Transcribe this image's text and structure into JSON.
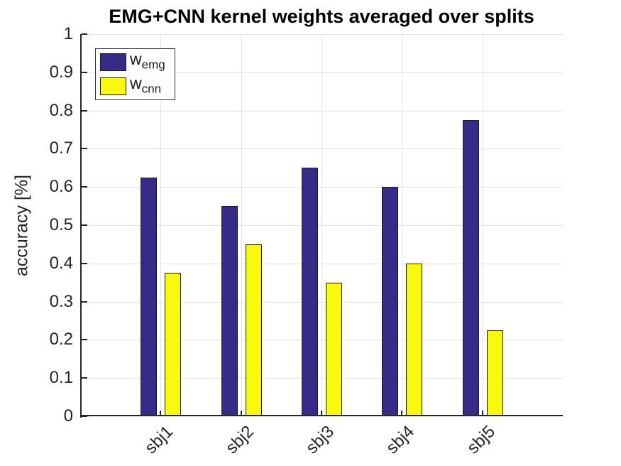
{
  "figure": {
    "title": "EMG+CNN kernel weights averaged over splits",
    "ylabel": "accuracy [%]"
  },
  "legend": {
    "entries": [
      {
        "main": "w",
        "sub": "emg"
      },
      {
        "main": "w",
        "sub": "cnn"
      }
    ]
  },
  "colors": {
    "emg_bar": "#362b87",
    "cnn_bar": "#f9f90d",
    "axis": "#262626",
    "grid": "#e2e2e2",
    "bar_edge": "#1a1a1a"
  },
  "chart_data": {
    "type": "bar",
    "title": "EMG+CNN kernel weights averaged over splits",
    "categories": [
      "sbj1",
      "sbj2",
      "sbj3",
      "sbj4",
      "sbj5"
    ],
    "series": [
      {
        "name": "w_emg",
        "color": "#362b87",
        "values": [
          0.625,
          0.55,
          0.65,
          0.6,
          0.775
        ]
      },
      {
        "name": "w_cnn",
        "color": "#f9f90d",
        "values": [
          0.375,
          0.45,
          0.35,
          0.4,
          0.225
        ]
      }
    ],
    "xlabel": "",
    "ylabel": "accuracy [%]",
    "ylim": [
      0,
      1
    ],
    "ytick_step": 0.1,
    "ytick_labels": [
      "0",
      "0.1",
      "0.2",
      "0.3",
      "0.4",
      "0.5",
      "0.6",
      "0.7",
      "0.8",
      "0.9",
      "1"
    ],
    "grid": true,
    "legend_position": "top-left"
  }
}
